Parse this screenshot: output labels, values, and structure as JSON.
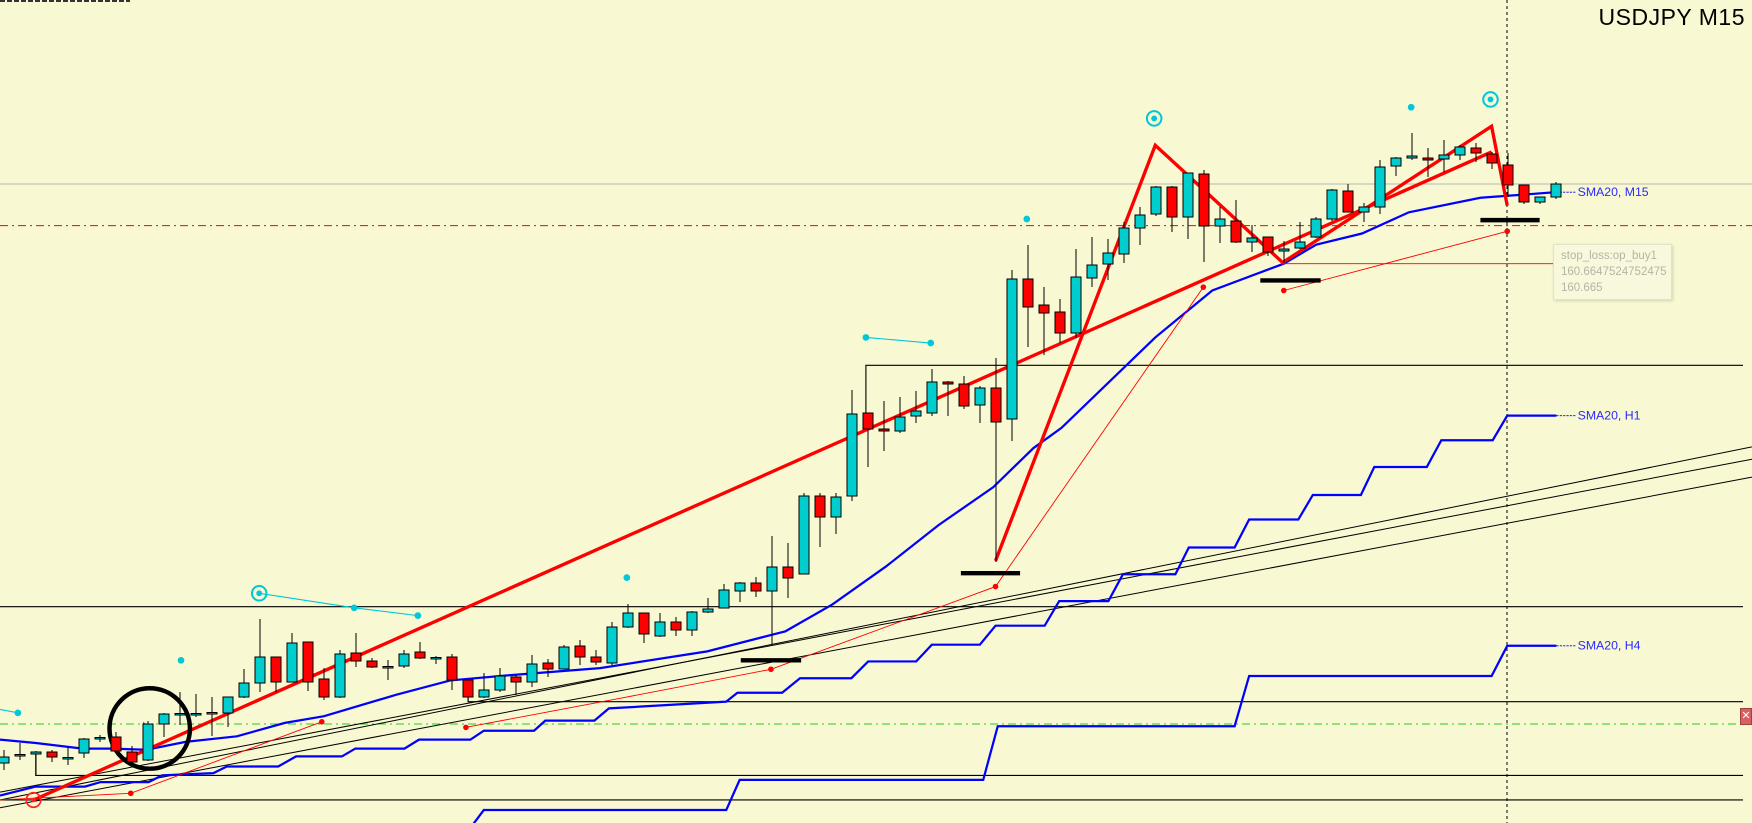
{
  "chart_title": "USDJPY M15",
  "indicators": {
    "sma_m15": "SMA20, M15",
    "sma_h1": "SMA20, H1",
    "sma_h4": "SMA20, H4"
  },
  "tooltip": {
    "line1": "stop_loss:op_buy1",
    "line2": "160.6647524752475",
    "line3": "160.665"
  },
  "close_label": "✕",
  "colors": {
    "background": "#f8f8d2",
    "bull_candle": "#00cdcd",
    "bear_candle": "#ff0000",
    "sma": "#0000ff",
    "trendline": "#ff0000",
    "stop_loss_line": "#ff0000",
    "green_level": "#22cc22"
  },
  "chart_data": {
    "type": "candlestick",
    "symbol": "USDJPY",
    "timeframe": "M15",
    "grid": false,
    "candles_ohlc": [
      [
        159.59,
        159.616,
        159.576,
        159.602
      ],
      [
        159.606,
        159.63,
        159.596,
        159.607
      ],
      [
        159.608,
        159.614,
        159.566,
        159.612
      ],
      [
        159.612,
        159.616,
        159.592,
        159.602
      ],
      [
        159.6,
        159.622,
        159.586,
        159.601
      ],
      [
        159.61,
        159.64,
        159.6,
        159.638
      ],
      [
        159.64,
        159.646,
        159.632,
        159.641
      ],
      [
        159.642,
        159.652,
        159.612,
        159.614
      ],
      [
        159.612,
        159.624,
        159.59,
        159.592
      ],
      [
        159.596,
        159.674,
        159.594,
        159.668
      ],
      [
        159.668,
        159.69,
        159.642,
        159.688
      ],
      [
        159.688,
        159.732,
        159.666,
        159.689
      ],
      [
        159.688,
        159.728,
        159.682,
        159.689
      ],
      [
        159.69,
        159.722,
        159.644,
        159.691
      ],
      [
        159.69,
        159.722,
        159.662,
        159.722
      ],
      [
        159.722,
        159.778,
        159.72,
        159.75
      ],
      [
        159.75,
        159.878,
        159.732,
        159.802
      ],
      [
        159.802,
        159.802,
        159.732,
        159.752
      ],
      [
        159.752,
        159.85,
        159.752,
        159.83
      ],
      [
        159.832,
        159.832,
        159.734,
        159.752
      ],
      [
        159.758,
        159.78,
        159.716,
        159.722
      ],
      [
        159.722,
        159.816,
        159.72,
        159.808
      ],
      [
        159.81,
        159.85,
        159.782,
        159.794
      ],
      [
        159.794,
        159.8,
        159.78,
        159.782
      ],
      [
        159.782,
        159.796,
        159.756,
        159.783
      ],
      [
        159.784,
        159.816,
        159.78,
        159.808
      ],
      [
        159.812,
        159.832,
        159.798,
        159.8
      ],
      [
        159.8,
        159.804,
        159.788,
        159.801
      ],
      [
        159.802,
        159.808,
        159.736,
        159.756
      ],
      [
        159.756,
        159.756,
        159.712,
        159.722
      ],
      [
        159.722,
        159.77,
        159.72,
        159.736
      ],
      [
        159.736,
        159.78,
        159.732,
        159.764
      ],
      [
        159.762,
        159.766,
        159.726,
        159.752
      ],
      [
        159.752,
        159.806,
        159.742,
        159.788
      ],
      [
        159.79,
        159.798,
        159.762,
        159.778
      ],
      [
        159.778,
        159.826,
        159.778,
        159.822
      ],
      [
        159.824,
        159.836,
        159.786,
        159.802
      ],
      [
        159.802,
        159.816,
        159.786,
        159.792
      ],
      [
        159.79,
        159.872,
        159.786,
        159.862
      ],
      [
        159.862,
        159.908,
        159.86,
        159.89
      ],
      [
        159.89,
        159.89,
        159.83,
        159.848
      ],
      [
        159.844,
        159.89,
        159.842,
        159.872
      ],
      [
        159.872,
        159.882,
        159.844,
        159.856
      ],
      [
        159.856,
        159.894,
        159.844,
        159.892
      ],
      [
        159.892,
        159.92,
        159.89,
        159.898
      ],
      [
        159.9,
        159.948,
        159.9,
        159.936
      ],
      [
        159.934,
        159.952,
        159.912,
        159.95
      ],
      [
        159.95,
        159.962,
        159.922,
        159.934
      ],
      [
        159.934,
        160.044,
        159.828,
        159.982
      ],
      [
        159.982,
        160.03,
        159.92,
        159.96
      ],
      [
        159.968,
        160.13,
        159.968,
        160.124
      ],
      [
        160.124,
        160.13,
        160.022,
        160.082
      ],
      [
        160.082,
        160.13,
        160.048,
        160.122
      ],
      [
        160.124,
        160.336,
        160.114,
        160.288
      ],
      [
        160.29,
        160.29,
        160.182,
        160.258
      ],
      [
        160.258,
        160.314,
        160.214,
        160.254
      ],
      [
        160.254,
        160.322,
        160.25,
        160.282
      ],
      [
        160.284,
        160.334,
        160.27,
        160.294
      ],
      [
        160.29,
        160.378,
        160.284,
        160.352
      ],
      [
        160.352,
        160.354,
        160.284,
        160.348
      ],
      [
        160.348,
        160.364,
        160.298,
        160.304
      ],
      [
        160.306,
        160.344,
        160.27,
        160.34
      ],
      [
        160.34,
        160.4,
        159.992,
        160.272
      ],
      [
        160.278,
        160.576,
        160.234,
        160.558
      ],
      [
        160.558,
        160.626,
        160.422,
        160.502
      ],
      [
        160.506,
        160.542,
        160.406,
        160.49
      ],
      [
        160.492,
        160.518,
        160.43,
        160.45
      ],
      [
        160.45,
        160.618,
        160.44,
        160.562
      ],
      [
        160.56,
        160.642,
        160.542,
        160.586
      ],
      [
        160.588,
        160.638,
        160.556,
        160.61
      ],
      [
        160.608,
        160.672,
        160.59,
        160.66
      ],
      [
        160.66,
        160.702,
        160.626,
        160.686
      ],
      [
        160.688,
        160.744,
        160.684,
        160.742
      ],
      [
        160.742,
        160.744,
        160.652,
        160.682
      ],
      [
        160.682,
        160.77,
        160.638,
        160.77
      ],
      [
        160.768,
        160.776,
        160.592,
        160.664
      ],
      [
        160.664,
        160.702,
        160.63,
        160.678
      ],
      [
        160.674,
        160.716,
        160.63,
        160.632
      ],
      [
        160.632,
        160.666,
        160.612,
        160.64
      ],
      [
        160.642,
        160.642,
        160.604,
        160.612
      ],
      [
        160.614,
        160.634,
        160.59,
        160.618
      ],
      [
        160.62,
        160.672,
        160.618,
        160.632
      ],
      [
        160.642,
        160.682,
        160.64,
        160.678
      ],
      [
        160.678,
        160.738,
        160.674,
        160.736
      ],
      [
        160.734,
        160.748,
        160.692,
        160.692
      ],
      [
        160.692,
        160.71,
        160.672,
        160.702
      ],
      [
        160.702,
        160.796,
        160.688,
        160.782
      ],
      [
        160.784,
        160.802,
        160.764,
        160.8
      ],
      [
        160.8,
        160.85,
        160.796,
        160.804
      ],
      [
        160.8,
        160.82,
        160.762,
        160.796
      ],
      [
        160.798,
        160.836,
        160.772,
        160.806
      ],
      [
        160.806,
        160.826,
        160.796,
        160.822
      ],
      [
        160.82,
        160.83,
        160.792,
        160.81
      ],
      [
        160.808,
        160.812,
        160.778,
        160.79
      ],
      [
        160.786,
        160.81,
        160.722,
        160.746
      ],
      [
        160.746,
        160.746,
        160.708,
        160.712
      ],
      [
        160.712,
        160.722,
        160.708,
        160.722
      ],
      [
        160.722,
        160.752,
        160.718,
        160.748
      ]
    ],
    "stop_loss_level": 160.665
  }
}
